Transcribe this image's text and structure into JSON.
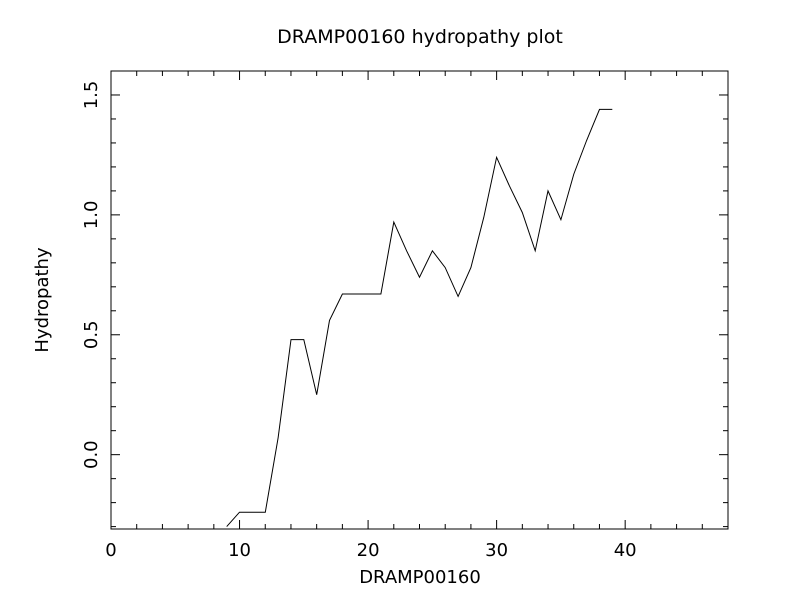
{
  "chart_data": {
    "type": "line",
    "title": "DRAMP00160 hydropathy plot",
    "xlabel": "DRAMP00160",
    "ylabel": "Hydropathy",
    "xlim": [
      0,
      48
    ],
    "ylim": [
      -0.31,
      1.6
    ],
    "x_major_ticks": [
      0,
      10,
      20,
      30,
      40
    ],
    "x_tick_labels": [
      "0",
      "10",
      "20",
      "30",
      "40"
    ],
    "x_minor_step": 2,
    "y_major_ticks": [
      0.0,
      0.5,
      1.0,
      1.5
    ],
    "y_tick_labels": [
      "0.0",
      "0.5",
      "1.0",
      "1.5"
    ],
    "y_minor_step": 0.1,
    "grid": false,
    "series": [
      {
        "color": "#000000",
        "x": [
          9,
          10,
          11,
          12,
          13,
          14,
          15,
          16,
          17,
          18,
          19,
          20,
          21,
          22,
          23,
          24,
          25,
          26,
          27,
          28,
          29,
          30,
          31,
          32,
          33,
          34,
          35,
          36,
          37,
          38,
          39
        ],
        "y": [
          -0.3,
          -0.24,
          -0.24,
          -0.24,
          0.07,
          0.48,
          0.48,
          0.25,
          0.56,
          0.67,
          0.67,
          0.67,
          0.67,
          0.97,
          0.85,
          0.74,
          0.85,
          0.78,
          0.66,
          0.78,
          0.99,
          1.24,
          1.12,
          1.01,
          0.85,
          1.1,
          0.98,
          1.17,
          1.31,
          1.44,
          1.44
        ]
      }
    ]
  }
}
